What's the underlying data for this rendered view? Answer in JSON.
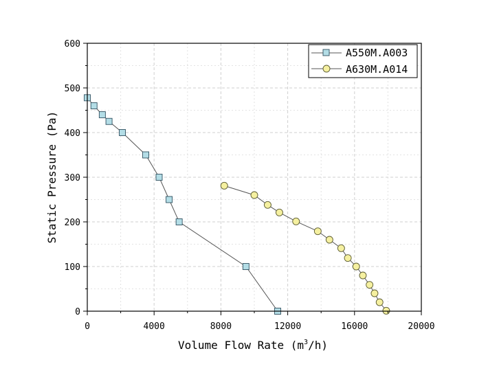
{
  "chart_data": {
    "type": "line",
    "xlabel": "Volume Flow Rate (m3/h)",
    "xlabel_parts": {
      "pre": "Volume Flow Rate (m",
      "sup": "3",
      "post": "/h)"
    },
    "ylabel": "Static Pressure (Pa)",
    "xlim": [
      0,
      20000
    ],
    "ylim": [
      0,
      600
    ],
    "xticks": [
      0,
      4000,
      8000,
      12000,
      16000,
      20000
    ],
    "yticks": [
      0,
      100,
      200,
      300,
      400,
      500,
      600
    ],
    "grid": true,
    "legend_position": "top-right",
    "series": [
      {
        "name": "A550M.A003",
        "marker": "square",
        "color": "#b3dde6",
        "points": [
          {
            "x": 0,
            "y": 478
          },
          {
            "x": 400,
            "y": 460
          },
          {
            "x": 900,
            "y": 440
          },
          {
            "x": 1300,
            "y": 425
          },
          {
            "x": 2100,
            "y": 400
          },
          {
            "x": 3500,
            "y": 350
          },
          {
            "x": 4300,
            "y": 300
          },
          {
            "x": 4900,
            "y": 250
          },
          {
            "x": 5500,
            "y": 200
          },
          {
            "x": 9500,
            "y": 100
          },
          {
            "x": 11400,
            "y": 0
          }
        ]
      },
      {
        "name": "A630M.A014",
        "marker": "circle",
        "color": "#f5f0a0",
        "points": [
          {
            "x": 8200,
            "y": 281
          },
          {
            "x": 10000,
            "y": 260
          },
          {
            "x": 10800,
            "y": 238
          },
          {
            "x": 11500,
            "y": 221
          },
          {
            "x": 12500,
            "y": 201
          },
          {
            "x": 13800,
            "y": 179
          },
          {
            "x": 14500,
            "y": 160
          },
          {
            "x": 15200,
            "y": 141
          },
          {
            "x": 15600,
            "y": 119
          },
          {
            "x": 16100,
            "y": 100
          },
          {
            "x": 16500,
            "y": 80
          },
          {
            "x": 16900,
            "y": 59
          },
          {
            "x": 17200,
            "y": 40
          },
          {
            "x": 17500,
            "y": 20
          },
          {
            "x": 17900,
            "y": 1
          }
        ]
      }
    ]
  }
}
